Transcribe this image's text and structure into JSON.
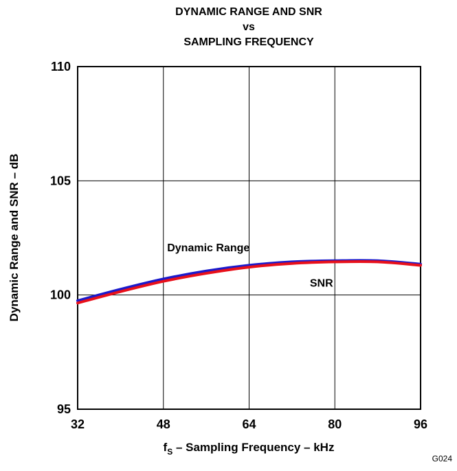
{
  "chart_data": {
    "type": "line",
    "title_lines": [
      "DYNAMIC RANGE AND SNR",
      "vs",
      "SAMPLING FREQUENCY"
    ],
    "xlabel_prefix": "f",
    "xlabel_subscript": "S",
    "xlabel_rest": " – Sampling Frequency – kHz",
    "ylabel": "Dynamic Range and SNR – dB",
    "xlim": [
      32,
      96
    ],
    "ylim": [
      95,
      110
    ],
    "xticks": [
      32,
      48,
      64,
      80,
      96
    ],
    "yticks": [
      95,
      100,
      105,
      110
    ],
    "x_tick_labels": [
      "32",
      "48",
      "64",
      "80",
      "96"
    ],
    "y_tick_labels": [
      "95",
      "100",
      "105",
      "110"
    ],
    "grid": true,
    "series": [
      {
        "name": "Dynamic Range",
        "color": "#1a1acc",
        "x": [
          32,
          40,
          48,
          56,
          64,
          72,
          80,
          88,
          96
        ],
        "y": [
          99.75,
          100.25,
          100.7,
          101.05,
          101.3,
          101.45,
          101.5,
          101.5,
          101.35
        ]
      },
      {
        "name": "SNR",
        "color": "#e8101a",
        "x": [
          32,
          40,
          48,
          56,
          64,
          72,
          80,
          88,
          96
        ],
        "y": [
          99.65,
          100.15,
          100.6,
          100.95,
          101.22,
          101.38,
          101.45,
          101.45,
          101.3
        ]
      }
    ],
    "annotations": [
      {
        "text": "Dynamic Range",
        "x": 56.4,
        "y": 102.1
      },
      {
        "text": "SNR",
        "x": 77.5,
        "y": 100.55
      }
    ],
    "figure_code": "G024"
  }
}
